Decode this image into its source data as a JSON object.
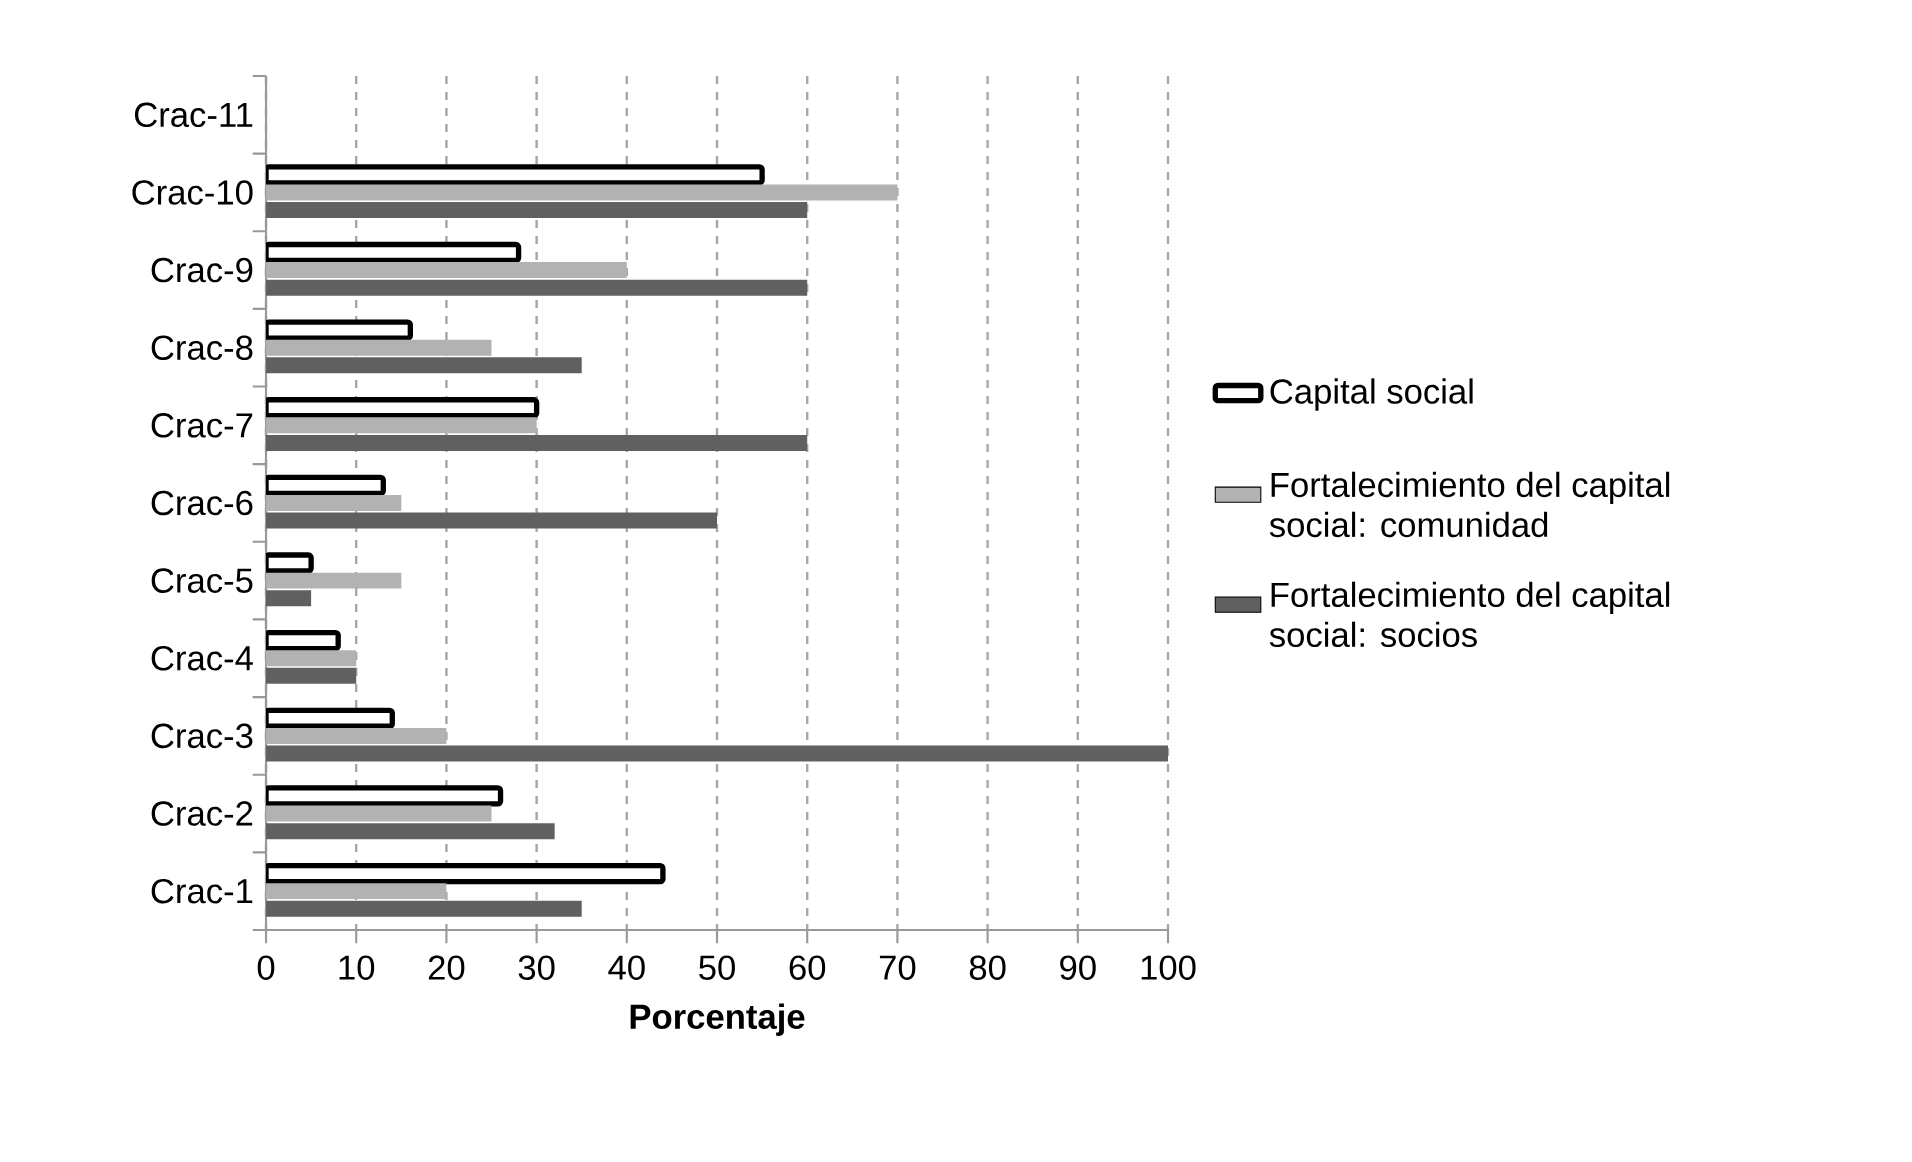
{
  "chart_data": {
    "type": "bar",
    "orientation": "horizontal",
    "xlabel": "Porcentaje",
    "categories": [
      "Crac-11",
      "Crac-10",
      "Crac-9",
      "Crac-8",
      "Crac-7",
      "Crac-6",
      "Crac-5",
      "Crac-4",
      "Crac-3",
      "Crac-2",
      "Crac-1"
    ],
    "series": [
      {
        "name": "Capital social",
        "color": "#000000",
        "values": [
          null,
          55,
          28,
          16,
          30,
          13,
          5,
          8,
          14,
          26,
          44
        ]
      },
      {
        "name": "Fortalecimiento del capital social: comunidad",
        "color": "#b2b2b2",
        "values": [
          null,
          70,
          40,
          25,
          30,
          15,
          15,
          10,
          20,
          25,
          20
        ]
      },
      {
        "name": "Fortalecimiento del capital social: socios",
        "color": "#606060",
        "values": [
          null,
          60,
          60,
          35,
          60,
          50,
          5,
          10,
          100,
          32,
          35
        ]
      }
    ],
    "xlim": [
      0,
      100
    ],
    "xticks": [
      0,
      10,
      20,
      30,
      40,
      50,
      60,
      70,
      80,
      90,
      100
    ],
    "grid": "x",
    "legend": "right"
  }
}
